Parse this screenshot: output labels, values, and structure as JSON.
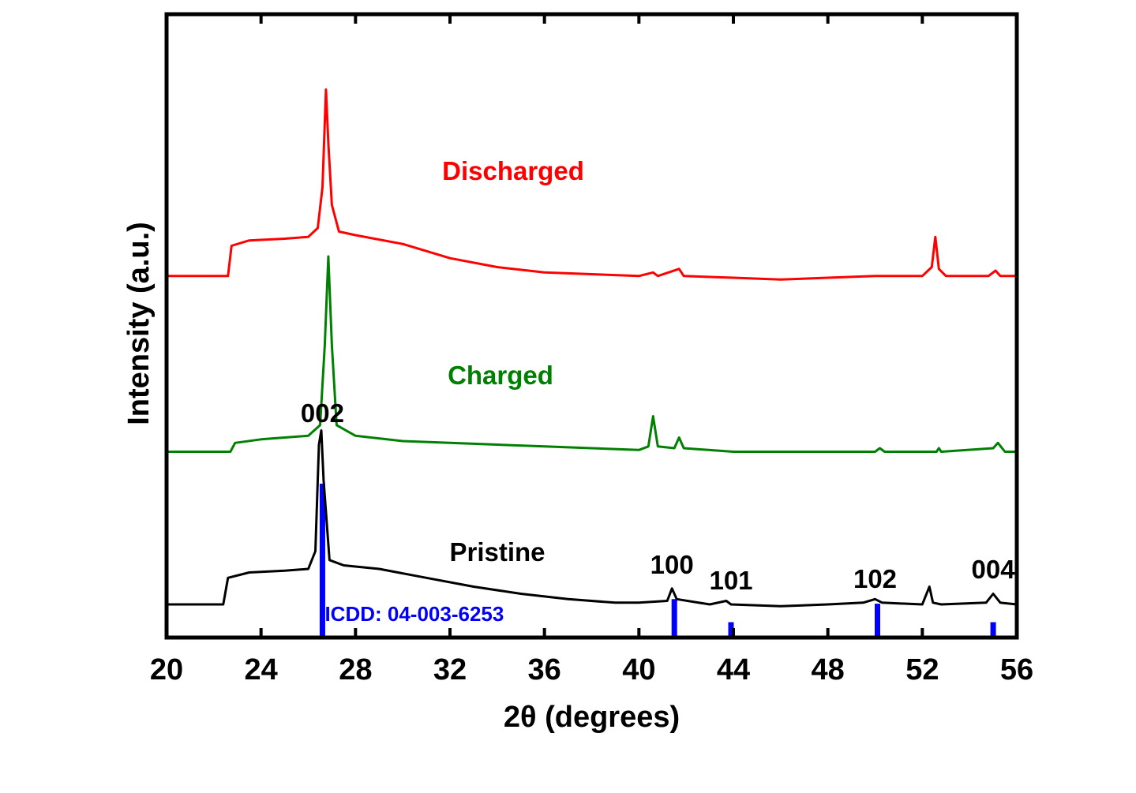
{
  "chart_data": {
    "type": "line",
    "xlabel": "2θ (degrees)",
    "ylabel": "Intensity (a.u.)",
    "xlim": [
      20,
      56
    ],
    "xticks": [
      20,
      24,
      28,
      32,
      36,
      40,
      44,
      48,
      52,
      56
    ],
    "y_units": "arbitrary (stacked, offset)",
    "grid": false,
    "legend": "none (series labeled inline)",
    "series": [
      {
        "name": "Discharged",
        "color": "#ff0000",
        "baseline": 1.85,
        "points": [
          [
            20,
            0
          ],
          [
            22.6,
            0
          ],
          [
            22.75,
            0.17
          ],
          [
            23.5,
            0.2
          ],
          [
            25,
            0.21
          ],
          [
            26,
            0.22
          ],
          [
            26.4,
            0.27
          ],
          [
            26.6,
            0.5
          ],
          [
            26.75,
            1.05
          ],
          [
            26.85,
            0.75
          ],
          [
            27,
            0.4
          ],
          [
            27.3,
            0.25
          ],
          [
            28,
            0.23
          ],
          [
            30,
            0.18
          ],
          [
            32,
            0.1
          ],
          [
            34,
            0.05
          ],
          [
            36,
            0.02
          ],
          [
            38,
            0.01
          ],
          [
            40,
            0.0
          ],
          [
            40.6,
            0.02
          ],
          [
            40.8,
            0.0
          ],
          [
            41.7,
            0.04
          ],
          [
            41.9,
            0.0
          ],
          [
            44,
            -0.01
          ],
          [
            46,
            -0.02
          ],
          [
            48,
            -0.01
          ],
          [
            50,
            0.0
          ],
          [
            52,
            0.0
          ],
          [
            52.4,
            0.05
          ],
          [
            52.55,
            0.22
          ],
          [
            52.7,
            0.04
          ],
          [
            53,
            0.0
          ],
          [
            54.8,
            0.0
          ],
          [
            55.1,
            0.03
          ],
          [
            55.3,
            0.0
          ],
          [
            56,
            0.0
          ]
        ]
      },
      {
        "name": "Charged",
        "color": "#008000",
        "baseline": 0.86,
        "points": [
          [
            20,
            0
          ],
          [
            22.7,
            0
          ],
          [
            22.9,
            0.05
          ],
          [
            24,
            0.07
          ],
          [
            25,
            0.08
          ],
          [
            26,
            0.09
          ],
          [
            26.5,
            0.15
          ],
          [
            26.7,
            0.6
          ],
          [
            26.85,
            1.1
          ],
          [
            27,
            0.6
          ],
          [
            27.2,
            0.15
          ],
          [
            28,
            0.09
          ],
          [
            30,
            0.06
          ],
          [
            32,
            0.05
          ],
          [
            34,
            0.04
          ],
          [
            36,
            0.03
          ],
          [
            38,
            0.02
          ],
          [
            40,
            0.01
          ],
          [
            40.4,
            0.03
          ],
          [
            40.6,
            0.2
          ],
          [
            40.8,
            0.03
          ],
          [
            41.5,
            0.02
          ],
          [
            41.7,
            0.08
          ],
          [
            41.9,
            0.02
          ],
          [
            44,
            0.0
          ],
          [
            46,
            0.0
          ],
          [
            48,
            0.0
          ],
          [
            50,
            0.0
          ],
          [
            50.2,
            0.02
          ],
          [
            50.4,
            0.0
          ],
          [
            52.6,
            0.0
          ],
          [
            52.7,
            0.02
          ],
          [
            52.8,
            0.0
          ],
          [
            55,
            0.02
          ],
          [
            55.2,
            0.05
          ],
          [
            55.5,
            0.0
          ],
          [
            56,
            0.0
          ]
        ]
      },
      {
        "name": "Pristine",
        "color": "#000000",
        "baseline": 0.0,
        "points": [
          [
            20,
            0
          ],
          [
            22.4,
            0
          ],
          [
            22.6,
            0.15
          ],
          [
            23.5,
            0.18
          ],
          [
            25,
            0.19
          ],
          [
            26,
            0.2
          ],
          [
            26.3,
            0.3
          ],
          [
            26.45,
            0.9
          ],
          [
            26.55,
            0.98
          ],
          [
            26.65,
            0.7
          ],
          [
            26.9,
            0.25
          ],
          [
            27.5,
            0.22
          ],
          [
            29,
            0.2
          ],
          [
            31,
            0.15
          ],
          [
            33,
            0.1
          ],
          [
            35,
            0.06
          ],
          [
            37,
            0.03
          ],
          [
            39,
            0.01
          ],
          [
            40,
            0.01
          ],
          [
            41.2,
            0.02
          ],
          [
            41.4,
            0.09
          ],
          [
            41.6,
            0.03
          ],
          [
            43,
            0.0
          ],
          [
            43.7,
            0.02
          ],
          [
            43.9,
            0.0
          ],
          [
            46,
            -0.01
          ],
          [
            48,
            0.0
          ],
          [
            49.5,
            0.01
          ],
          [
            50,
            0.03
          ],
          [
            50.3,
            0.01
          ],
          [
            52,
            0.0
          ],
          [
            52.3,
            0.1
          ],
          [
            52.45,
            0.01
          ],
          [
            52.8,
            0.0
          ],
          [
            54.7,
            0.01
          ],
          [
            55,
            0.06
          ],
          [
            55.3,
            0.01
          ],
          [
            56,
            0.0
          ]
        ]
      }
    ],
    "reference": {
      "label": "ICDD: 04-003-6253",
      "color": "#0000ff",
      "sticks": [
        [
          26.6,
          1.0
        ],
        [
          41.5,
          0.25
        ],
        [
          43.9,
          0.1
        ],
        [
          50.1,
          0.22
        ],
        [
          55.0,
          0.1
        ]
      ]
    },
    "peak_labels": [
      {
        "text": "002",
        "x": 26.6
      },
      {
        "text": "100",
        "x": 41.4
      },
      {
        "text": "101",
        "x": 43.9
      },
      {
        "text": "102",
        "x": 50.0
      },
      {
        "text": "004",
        "x": 55.0
      }
    ]
  }
}
